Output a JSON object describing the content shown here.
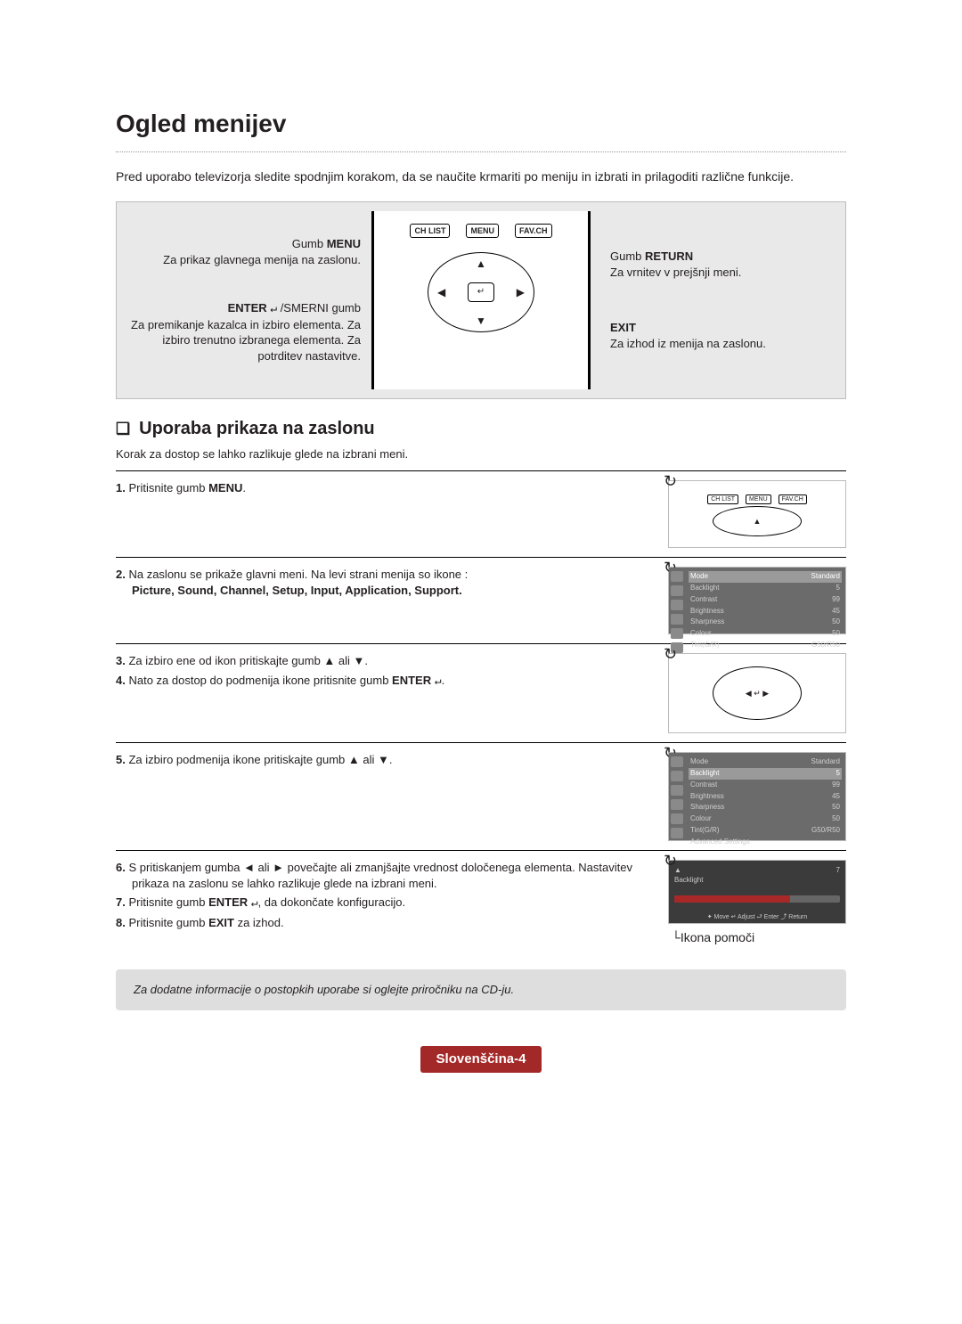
{
  "page": {
    "title": "Ogled menijev",
    "intro": "Pred uporabo televizorja sledite spodnjim korakom, da se naučite krmariti po meniju in izbrati in prilagoditi različne funkcije.",
    "footer_note": "Za dodatne informacije o postopkih uporabe si oglejte priročniku na CD-ju.",
    "page_label": "Slovenščina-4"
  },
  "remote": {
    "menu_label": "Gumb ",
    "menu_bold": "MENU",
    "menu_desc": "Za prikaz glavnega menija na zaslonu.",
    "enter_bold": "ENTER",
    "enter_glyph": "↵",
    "enter_suffix": " /SMERNI gumb",
    "enter_desc": "Za premikanje kazalca in izbiro elementa. Za izbiro trenutno izbranega elementa. Za potrditev nastavitve.",
    "return_label": "Gumb ",
    "return_bold": "RETURN",
    "return_desc": "Za vrnitev v prejšnji meni.",
    "exit_bold": "EXIT",
    "exit_desc": "Za izhod iz menija na zaslonu.",
    "buttons": {
      "chlist": "CH LIST",
      "menu": "MENU",
      "favch": "FAV.CH",
      "enter": "↵"
    }
  },
  "section": {
    "heading": "Uporaba prikaza na zaslonu",
    "subdesc": "Korak za dostop se lahko razlikuje glede na izbrani meni.",
    "help_caption": "Ikona pomoči"
  },
  "steps": {
    "s1_num": "1.",
    "s1_a": "Pritisnite gumb ",
    "s1_b": "MENU",
    "s1_c": ".",
    "s2_num": "2.",
    "s2_text": "Na zaslonu se prikaže glavni meni. Na levi strani menija so ikone :",
    "s2_bold": "Picture, Sound, Channel, Setup, Input, Application, Support.",
    "s3_num": "3.",
    "s3_text": "Za izbiro ene od ikon pritiskajte gumb ▲ ali ▼.",
    "s4_num": "4.",
    "s4_a": "Nato za dostop do podmenija ikone pritisnite gumb ",
    "s4_b": "ENTER",
    "s4_c": "↵",
    "s4_d": ".",
    "s5_num": "5.",
    "s5_text": "Za izbiro podmenija ikone pritiskajte gumb ▲ ali ▼.",
    "s6_num": "6.",
    "s6_text": "S pritiskanjem gumba ◄ ali ► povečajte ali zmanjšajte vrednost določenega elementa. Nastavitev prikaza na zaslonu se lahko razlikuje glede na izbrani meni.",
    "s7_num": "7.",
    "s7_a": "Pritisnite gumb ",
    "s7_b": "ENTER",
    "s7_c": "↵",
    "s7_d": ", da dokončate konfiguracijo.",
    "s8_num": "8.",
    "s8_a": "Pritisnite gumb ",
    "s8_b": "EXIT",
    "s8_c": " za izhod."
  },
  "osd": {
    "rows": [
      {
        "label": "Mode",
        "value": "Standard",
        "hl": true
      },
      {
        "label": "Backlight",
        "value": "5"
      },
      {
        "label": "Contrast",
        "value": "99"
      },
      {
        "label": "Brightness",
        "value": "45"
      },
      {
        "label": "Sharpness",
        "value": "50"
      },
      {
        "label": "Colour",
        "value": "50"
      },
      {
        "label": "Tint(G/R)",
        "value": "G50/R50"
      }
    ],
    "rows2": [
      {
        "label": "Mode",
        "value": "Standard"
      },
      {
        "label": "Backlight",
        "value": "5",
        "hl": true
      },
      {
        "label": "Contrast",
        "value": "99"
      },
      {
        "label": "Brightness",
        "value": "45"
      },
      {
        "label": "Sharpness",
        "value": "50"
      },
      {
        "label": "Colour",
        "value": "50"
      },
      {
        "label": "Tint(G/R)",
        "value": "G50/R50"
      },
      {
        "label": "Advanced Settings",
        "value": ""
      }
    ],
    "slider_label": "Backlight",
    "slider_value": "7",
    "slider_legend": "✦ Move  ↵ Adjust  ⮐ Enter  ⤴ Return"
  },
  "colors": {
    "page_bg": "#ffffff",
    "text": "#231f20",
    "box_bg": "#e9e9e9",
    "box_border": "#bdbdbd",
    "accent_red": "#a32828",
    "note_bg": "#dedede",
    "osd_bg": "#6b6b6b"
  }
}
